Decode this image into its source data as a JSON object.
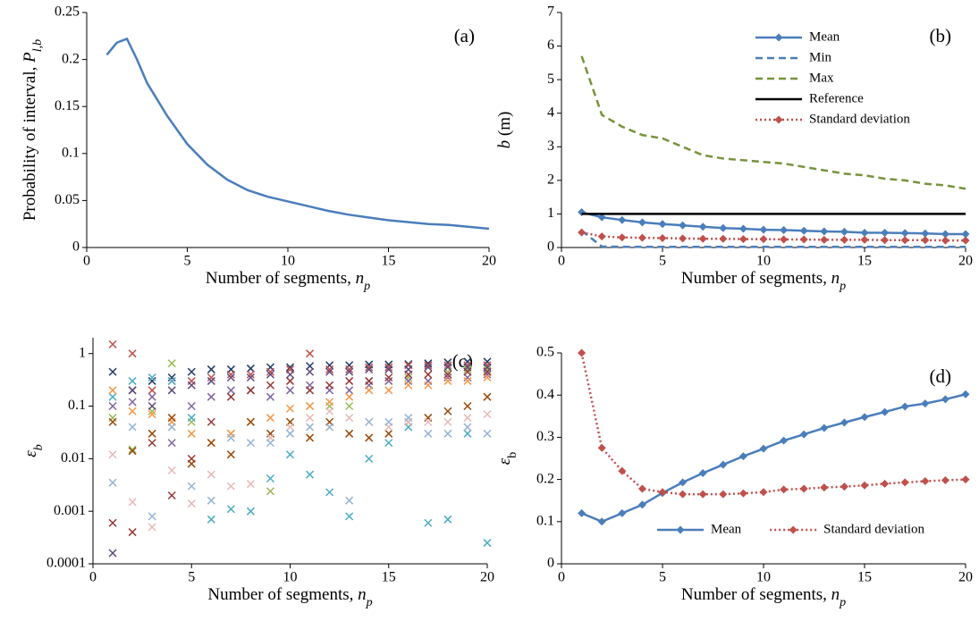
{
  "chart_data": [
    {
      "type": "line",
      "annotation": "(a)",
      "xlabel": [
        {
          "text": "Number of segments, ",
          "style": "normal"
        },
        {
          "text": "n",
          "style": "italic"
        },
        {
          "text": "p",
          "style": "sub-italic"
        }
      ],
      "ylabel": [
        {
          "text": "Probability of interval, ",
          "style": "normal"
        },
        {
          "text": "P",
          "style": "italic"
        },
        {
          "text": "l,b",
          "style": "sub-italic"
        }
      ],
      "xlim": [
        0,
        20
      ],
      "xticks": [
        0,
        5,
        10,
        15,
        20
      ],
      "ylim": [
        0,
        0.25
      ],
      "yticks": [
        0,
        0.05,
        0.1,
        0.15,
        0.2,
        0.25
      ],
      "x": [
        1,
        1.5,
        2,
        2.5,
        3,
        4,
        5,
        6,
        7,
        8,
        9,
        10,
        11,
        12,
        13,
        14,
        15,
        16,
        17,
        18,
        19,
        20
      ],
      "series": [
        {
          "color": "#4a7ebb",
          "width": 2.5,
          "values": [
            0.205,
            0.218,
            0.222,
            0.2,
            0.175,
            0.14,
            0.11,
            0.088,
            0.072,
            0.061,
            0.054,
            0.049,
            0.044,
            0.039,
            0.035,
            0.032,
            0.029,
            0.027,
            0.025,
            0.024,
            0.022,
            0.02
          ]
        }
      ]
    },
    {
      "type": "line",
      "annotation": "(b)",
      "legend": "top-right",
      "xlabel": [
        {
          "text": "Number of segments, ",
          "style": "normal"
        },
        {
          "text": "n",
          "style": "italic"
        },
        {
          "text": "p",
          "style": "sub-italic"
        }
      ],
      "ylabel": [
        {
          "text": "b",
          "style": "italic"
        },
        {
          "text": " (m)",
          "style": "normal"
        }
      ],
      "xlim": [
        0,
        20
      ],
      "xticks": [
        0,
        5,
        10,
        15,
        20
      ],
      "ylim": [
        0,
        7
      ],
      "yticks": [
        0,
        1,
        2,
        3,
        4,
        5,
        6,
        7
      ],
      "x": [
        1,
        2,
        3,
        4,
        5,
        6,
        7,
        8,
        9,
        10,
        11,
        12,
        13,
        14,
        15,
        16,
        17,
        18,
        19,
        20
      ],
      "series": [
        {
          "name": "Mean",
          "color": "#4a7ebb",
          "width": 2.5,
          "dash": "solid",
          "marker": "diamond",
          "values": [
            1.05,
            0.9,
            0.82,
            0.75,
            0.7,
            0.66,
            0.62,
            0.58,
            0.56,
            0.53,
            0.52,
            0.5,
            0.48,
            0.47,
            0.44,
            0.44,
            0.43,
            0.42,
            0.4,
            0.4
          ]
        },
        {
          "name": "Min",
          "color": "#4a7ebb",
          "width": 2.5,
          "dash": "dashed",
          "values": [
            0.5,
            0.03,
            0.02,
            0.02,
            0.02,
            0.02,
            0.02,
            0.02,
            0.02,
            0.02,
            0.02,
            0.02,
            0.02,
            0.02,
            0.02,
            0.02,
            0.02,
            0.02,
            0.02,
            0.02
          ]
        },
        {
          "name": "Max",
          "color": "#77933c",
          "width": 2.5,
          "dash": "dashed",
          "values": [
            5.7,
            3.95,
            3.6,
            3.35,
            3.25,
            3.0,
            2.75,
            2.65,
            2.6,
            2.55,
            2.5,
            2.4,
            2.3,
            2.2,
            2.15,
            2.05,
            2.0,
            1.9,
            1.85,
            1.75
          ]
        },
        {
          "name": "Reference",
          "color": "#000000",
          "width": 2.5,
          "dash": "solid",
          "values": [
            1,
            1,
            1,
            1,
            1,
            1,
            1,
            1,
            1,
            1,
            1,
            1,
            1,
            1,
            1,
            1,
            1,
            1,
            1,
            1
          ]
        },
        {
          "name": "Standard deviation",
          "color": "#c0504d",
          "width": 2.5,
          "dash": "dotted",
          "marker": "diamond",
          "values": [
            0.45,
            0.33,
            0.3,
            0.29,
            0.28,
            0.27,
            0.26,
            0.26,
            0.25,
            0.25,
            0.24,
            0.24,
            0.23,
            0.23,
            0.23,
            0.22,
            0.22,
            0.22,
            0.21,
            0.21
          ]
        }
      ]
    },
    {
      "type": "scatter",
      "annotation": "(c)",
      "log_y": true,
      "xlabel": [
        {
          "text": "Number of segments, ",
          "style": "normal"
        },
        {
          "text": "n",
          "style": "italic"
        },
        {
          "text": "p",
          "style": "sub-italic"
        }
      ],
      "ylabel": [
        {
          "text": "ε",
          "style": "italic"
        },
        {
          "text": "b",
          "style": "sub-italic"
        }
      ],
      "xlim": [
        0,
        20
      ],
      "xticks": [
        0,
        5,
        10,
        15,
        20
      ],
      "ylim": [
        0.0001,
        2
      ],
      "yticks": [
        0.0001,
        0.001,
        0.01,
        0.1,
        1
      ],
      "x": [
        1,
        2,
        3,
        4,
        5,
        6,
        7,
        8,
        9,
        10,
        11,
        12,
        13,
        14,
        15,
        16,
        17,
        18,
        19,
        20
      ],
      "series": [
        {
          "color": "#1f3864",
          "values": [
            0.45,
            0.2,
            0.3,
            0.35,
            0.45,
            0.5,
            0.5,
            0.52,
            0.55,
            0.55,
            0.58,
            0.6,
            0.6,
            0.62,
            0.62,
            0.63,
            0.65,
            0.68,
            0.7,
            0.7
          ]
        },
        {
          "color": "#c0504d",
          "values": [
            1.5,
            1.0,
            0.2,
            0.3,
            0.3,
            0.35,
            0.4,
            0.4,
            0.45,
            0.5,
            1.0,
            0.5,
            0.5,
            0.55,
            0.55,
            0.6,
            0.6,
            0.6,
            0.6,
            0.6
          ]
        },
        {
          "color": "#9bbb59",
          "values": [
            0.06,
            0.015,
            0.08,
            0.65,
            0.05,
            0.02,
            0.03,
            0.05,
            0.0024,
            0.05,
            0.1,
            0.1,
            0.1,
            0.3,
            0.3,
            0.35,
            0.4,
            0.45,
            0.5,
            0.5
          ]
        },
        {
          "color": "#8064a2",
          "values": [
            0.1,
            0.12,
            0.15,
            0.02,
            0.1,
            0.15,
            0.2,
            0.2,
            0.15,
            0.2,
            0.25,
            0.2,
            0.2,
            0.25,
            0.3,
            0.3,
            0.3,
            0.35,
            0.35,
            0.4
          ]
        },
        {
          "color": "#4bacc6",
          "values": [
            0.15,
            0.3,
            0.35,
            0.3,
            0.06,
            0.0007,
            0.0011,
            0.001,
            0.0042,
            0.012,
            0.005,
            0.0023,
            0.0008,
            0.01,
            0.02,
            0.04,
            0.0006,
            0.0007,
            0.03,
            0.00025
          ]
        },
        {
          "color": "#f79646",
          "values": [
            0.2,
            0.08,
            0.07,
            0.05,
            0.03,
            0.02,
            0.03,
            0.05,
            0.06,
            0.09,
            0.1,
            0.12,
            0.15,
            0.2,
            0.2,
            0.25,
            0.25,
            0.3,
            0.3,
            0.35
          ]
        },
        {
          "color": "#953735",
          "values": [
            0.0006,
            0.0004,
            0.02,
            0.002,
            0.01,
            0.05,
            0.15,
            0.2,
            0.25,
            0.3,
            0.2,
            0.25,
            0.3,
            0.3,
            0.35,
            0.4,
            0.4,
            0.4,
            0.45,
            0.45
          ]
        },
        {
          "color": "#984807",
          "values": [
            0.05,
            0.014,
            0.03,
            0.06,
            0.008,
            0.02,
            0.012,
            0.05,
            0.03,
            0.05,
            0.025,
            0.05,
            0.03,
            0.025,
            0.03,
            0.05,
            0.06,
            0.08,
            0.1,
            0.15
          ]
        },
        {
          "color": "#e6b9b8",
          "values": [
            0.012,
            0.0015,
            0.0005,
            0.006,
            0.0014,
            0.005,
            0.003,
            0.0033,
            0.025,
            0.04,
            0.06,
            0.08,
            0.06,
            0.05,
            0.04,
            0.05,
            0.05,
            0.05,
            0.06,
            0.07
          ]
        },
        {
          "color": "#95b3d7",
          "values": [
            0.0035,
            0.04,
            0.0008,
            0.04,
            0.003,
            0.0016,
            0.025,
            0.02,
            0.02,
            0.03,
            0.04,
            0.04,
            0.0016,
            0.05,
            0.05,
            0.06,
            0.03,
            0.03,
            0.04,
            0.03
          ]
        },
        {
          "color": "#5f497a",
          "values": [
            0.00016,
            0.2,
            0.1,
            0.2,
            0.25,
            0.3,
            0.35,
            0.35,
            0.4,
            0.4,
            0.45,
            0.45,
            0.45,
            0.5,
            0.5,
            0.5,
            0.55,
            0.55,
            0.55,
            0.55
          ]
        }
      ]
    },
    {
      "type": "line",
      "annotation": "(d)",
      "legend": "bottom",
      "xlabel": [
        {
          "text": "Number of segments, ",
          "style": "normal"
        },
        {
          "text": "n",
          "style": "italic"
        },
        {
          "text": "p",
          "style": "sub-italic"
        }
      ],
      "ylabel": [
        {
          "text": "ε",
          "style": "italic"
        },
        {
          "text": "b",
          "style": "sub"
        }
      ],
      "xlim": [
        0,
        20
      ],
      "xticks": [
        0,
        5,
        10,
        15,
        20
      ],
      "ylim": [
        0,
        0.5
      ],
      "yticks": [
        0,
        0.1,
        0.2,
        0.3,
        0.4,
        0.5
      ],
      "x": [
        1,
        2,
        3,
        4,
        5,
        6,
        7,
        8,
        9,
        10,
        11,
        12,
        13,
        14,
        15,
        16,
        17,
        18,
        19,
        20
      ],
      "series": [
        {
          "name": "Mean",
          "color": "#4a7ebb",
          "width": 2.5,
          "dash": "solid",
          "marker": "diamond",
          "values": [
            0.12,
            0.1,
            0.12,
            0.14,
            0.168,
            0.193,
            0.215,
            0.235,
            0.255,
            0.273,
            0.292,
            0.307,
            0.322,
            0.335,
            0.348,
            0.36,
            0.373,
            0.38,
            0.39,
            0.402
          ]
        },
        {
          "name": "Standard deviation",
          "color": "#c0504d",
          "width": 2.5,
          "dash": "dotted",
          "marker": "diamond",
          "values": [
            0.5,
            0.275,
            0.22,
            0.178,
            0.17,
            0.165,
            0.165,
            0.165,
            0.167,
            0.17,
            0.176,
            0.178,
            0.181,
            0.183,
            0.186,
            0.19,
            0.193,
            0.196,
            0.198,
            0.2
          ]
        }
      ]
    }
  ]
}
